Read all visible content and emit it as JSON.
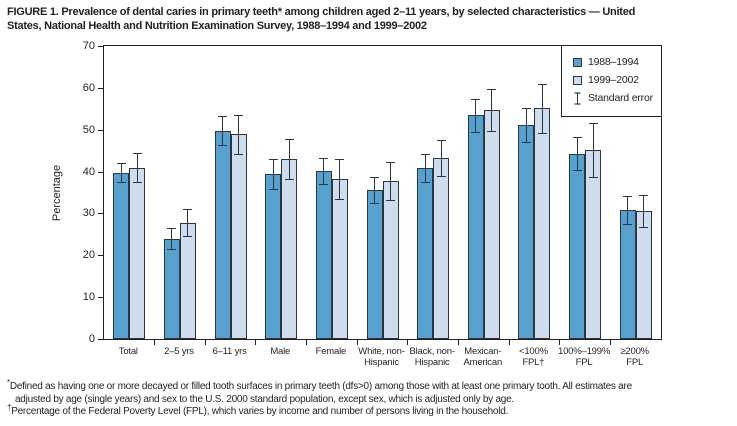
{
  "figure": {
    "title_lines": [
      "FIGURE 1. Prevalence of dental caries in primary teeth* among children aged 2–11 years, by selected characteristics — United",
      "States, National Health and Nutrition Examination Survey, 1988–1994 and 1999–2002"
    ]
  },
  "chart_data": {
    "type": "bar",
    "title": "Prevalence of dental caries in primary teeth among children aged 2–11 years, by selected characteristics",
    "xlabel": "",
    "ylabel": "Percentage",
    "ylim": [
      0,
      70
    ],
    "yticks": [
      0,
      10,
      20,
      30,
      40,
      50,
      60,
      70
    ],
    "grid": false,
    "legend_position": "top-right",
    "error_bar_label": "Standard error",
    "categories": [
      "Total",
      "2–5 yrs",
      "6–11 yrs",
      "Male",
      "Female",
      "White, non-Hispanic",
      "Black, non-Hispanic",
      "Mexican-American",
      "<100% FPL†",
      "100%–199% FPL",
      "≥200% FPL"
    ],
    "category_label_lines": [
      [
        "Total"
      ],
      [
        "2–5 yrs"
      ],
      [
        "6–11 yrs"
      ],
      [
        "Male"
      ],
      [
        "Female"
      ],
      [
        "White, non-",
        "Hispanic"
      ],
      [
        "Black, non-",
        "Hispanic"
      ],
      [
        "Mexican-",
        "American"
      ],
      [
        "<100%",
        "FPL†"
      ],
      [
        "100%–199%",
        "FPL"
      ],
      [
        "≥200%",
        "FPL"
      ]
    ],
    "series": [
      {
        "name": "1988–1994",
        "color": "#58a1ce",
        "values": [
          39.7,
          24.0,
          49.8,
          39.4,
          40.2,
          35.6,
          40.9,
          53.4,
          51.1,
          44.3,
          30.8
        ],
        "standard_errors": [
          2.3,
          2.5,
          3.5,
          3.6,
          3.1,
          3.0,
          3.4,
          3.9,
          4.0,
          4.0,
          3.3
        ]
      },
      {
        "name": "1999–2002",
        "color": "#cfdcee",
        "values": [
          40.9,
          27.8,
          48.9,
          43.1,
          38.2,
          37.8,
          43.3,
          54.8,
          55.1,
          45.1,
          30.6
        ],
        "standard_errors": [
          3.5,
          3.3,
          4.7,
          4.8,
          4.7,
          4.5,
          4.3,
          5.0,
          5.9,
          6.4,
          3.8
        ]
      }
    ],
    "colors": {
      "bar_outline": "#2a3642",
      "axis": "#231f20",
      "error_bar": "#2a3642"
    }
  },
  "footnotes": [
    {
      "marker": "*",
      "lines": [
        "Defined as having one or more decayed or filled tooth surfaces in primary teeth (dfs>0) among those with at least one primary tooth. All estimates are",
        "adjusted by age (single years) and sex to the U.S. 2000 standard population, except sex, which is adjusted only by age."
      ]
    },
    {
      "marker": "†",
      "lines": [
        "Percentage of the Federal Poverty Level (FPL), which varies by income and number of persons living in the household."
      ]
    }
  ]
}
